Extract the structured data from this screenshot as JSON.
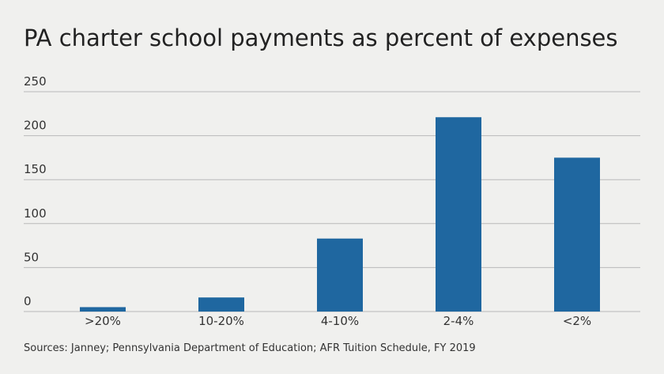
{
  "chart_data": {
    "type": "bar",
    "title": "PA charter school payments as percent of expenses",
    "categories": [
      ">20%",
      "10-20%",
      "4-10%",
      "2-4%",
      "<2%"
    ],
    "values": [
      5,
      16,
      83,
      221,
      175
    ],
    "color": "#1f67a0",
    "ylim": [
      0,
      250
    ],
    "yticks": [
      0,
      50,
      100,
      150,
      200,
      250
    ],
    "grid": true,
    "source": "Sources: Janney; Pennsylvania Department of Education; AFR Tuition Schedule, FY 2019"
  }
}
